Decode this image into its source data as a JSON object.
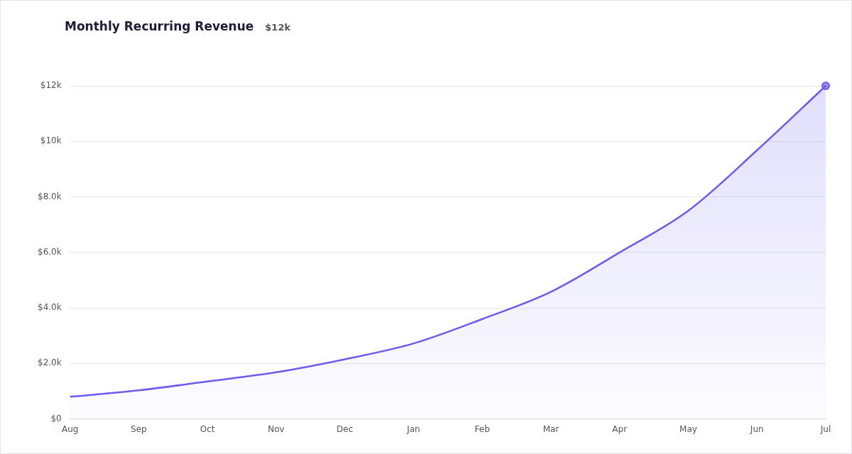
{
  "chart_data": {
    "type": "area",
    "title": "Monthly Recurring Revenue",
    "subtitle": "$12k",
    "categories": [
      "Aug",
      "Sep",
      "Oct",
      "Nov",
      "Dec",
      "Jan",
      "Feb",
      "Mar",
      "Apr",
      "May",
      "Jun",
      "Jul"
    ],
    "series": [
      {
        "color": "#6b5cf0",
        "values": [
          800,
          1030,
          1350,
          1680,
          2150,
          2720,
          3600,
          4580,
          6000,
          7500,
          9680,
          12000
        ]
      }
    ],
    "ylim": [
      0,
      12000
    ],
    "yticks": [
      {
        "value": 0,
        "label": "$0"
      },
      {
        "value": 2000,
        "label": "$2.0k"
      },
      {
        "value": 4000,
        "label": "$4.0k"
      },
      {
        "value": 6000,
        "label": "$6.0k"
      },
      {
        "value": 8000,
        "label": "$8.0k"
      },
      {
        "value": 10000,
        "label": "$10k"
      },
      {
        "value": 12000,
        "label": "$12k"
      }
    ],
    "grid": "y",
    "legend": false
  }
}
